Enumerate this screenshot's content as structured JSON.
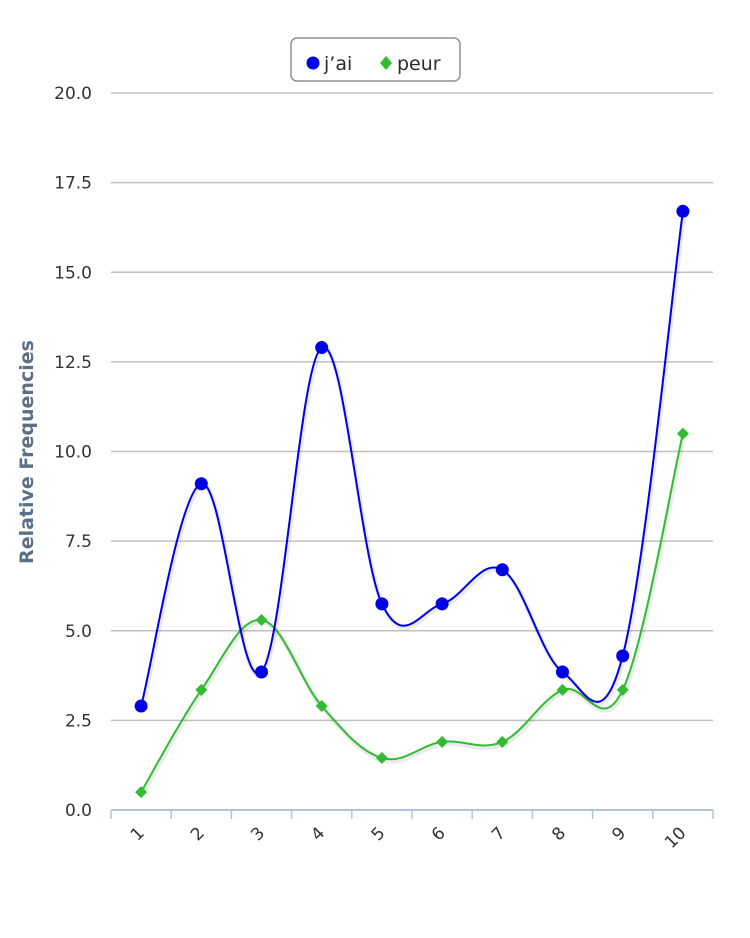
{
  "chart_data": {
    "type": "line",
    "categories": [
      "1",
      "2",
      "3",
      "4",
      "5",
      "6",
      "7",
      "8",
      "9",
      "10"
    ],
    "series": [
      {
        "name": "j’ai",
        "color": "#0000e6",
        "marker": "circle",
        "values": [
          2.9,
          9.1,
          3.85,
          12.9,
          5.75,
          5.75,
          6.7,
          3.85,
          4.3,
          16.7
        ]
      },
      {
        "name": "peur",
        "color": "#33bb33",
        "marker": "diamond",
        "values": [
          0.5,
          3.35,
          5.3,
          2.9,
          1.45,
          1.9,
          1.9,
          3.35,
          3.35,
          10.5
        ]
      }
    ],
    "ylabel": "Relative Frequencies",
    "xlabel": "",
    "ylim": [
      0,
      20
    ],
    "yticks": [
      "0.0",
      "2.5",
      "5.0",
      "7.5",
      "10.0",
      "12.5",
      "15.0",
      "17.5",
      "20.0"
    ],
    "grid": true,
    "legend": "top-center"
  }
}
